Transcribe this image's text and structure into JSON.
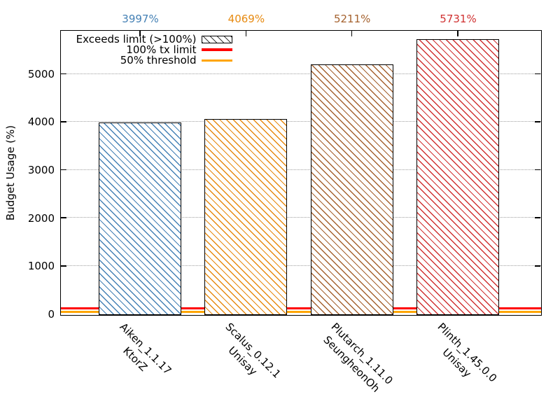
{
  "chart_data": {
    "type": "bar",
    "title": "",
    "ylabel": "Budget Usage (%)",
    "categories": [
      {
        "label": "Aiken_1.1.17",
        "sublabel": "KtorZ"
      },
      {
        "label": "Scalus_0.12.1",
        "sublabel": "Unisay"
      },
      {
        "label": "Plutarch_1.11.0",
        "sublabel": "SeungheonOh"
      },
      {
        "label": "Plinth_1.45.0.0",
        "sublabel": "Unisay"
      }
    ],
    "series": [
      {
        "name": "Exceeds limit (>100%)",
        "values": [
          3997,
          4069,
          5211,
          5731
        ],
        "value_labels": [
          "3997%",
          "4069%",
          "5211%",
          "5731%"
        ],
        "colors": [
          "#4581b5",
          "#e78a10",
          "#a5622f",
          "#d03131"
        ],
        "style": "diagonal-hatch-on-white"
      }
    ],
    "reference_lines": [
      {
        "label": "100% tx limit",
        "value": 100,
        "color": "#ff0000"
      },
      {
        "label": "50% threshold",
        "value": 50,
        "color": "#ffa500"
      }
    ],
    "legend": [
      {
        "label": "Exceeds limit (>100%)",
        "swatch": "hatch",
        "color": "#3a3a3a"
      },
      {
        "label": "100% tx limit",
        "swatch": "line",
        "color": "#ff0000"
      },
      {
        "label": "50% threshold",
        "swatch": "line",
        "color": "#ffa500"
      }
    ],
    "yticks": [
      0,
      1000,
      2000,
      3000,
      4000,
      5000
    ],
    "ylim": [
      0,
      5900
    ],
    "xlabel": "",
    "grid": {
      "horizontal": true,
      "vertical": false,
      "style": "dotted"
    },
    "legend_position": "top-inside-left",
    "xtick_rotation": 45
  }
}
